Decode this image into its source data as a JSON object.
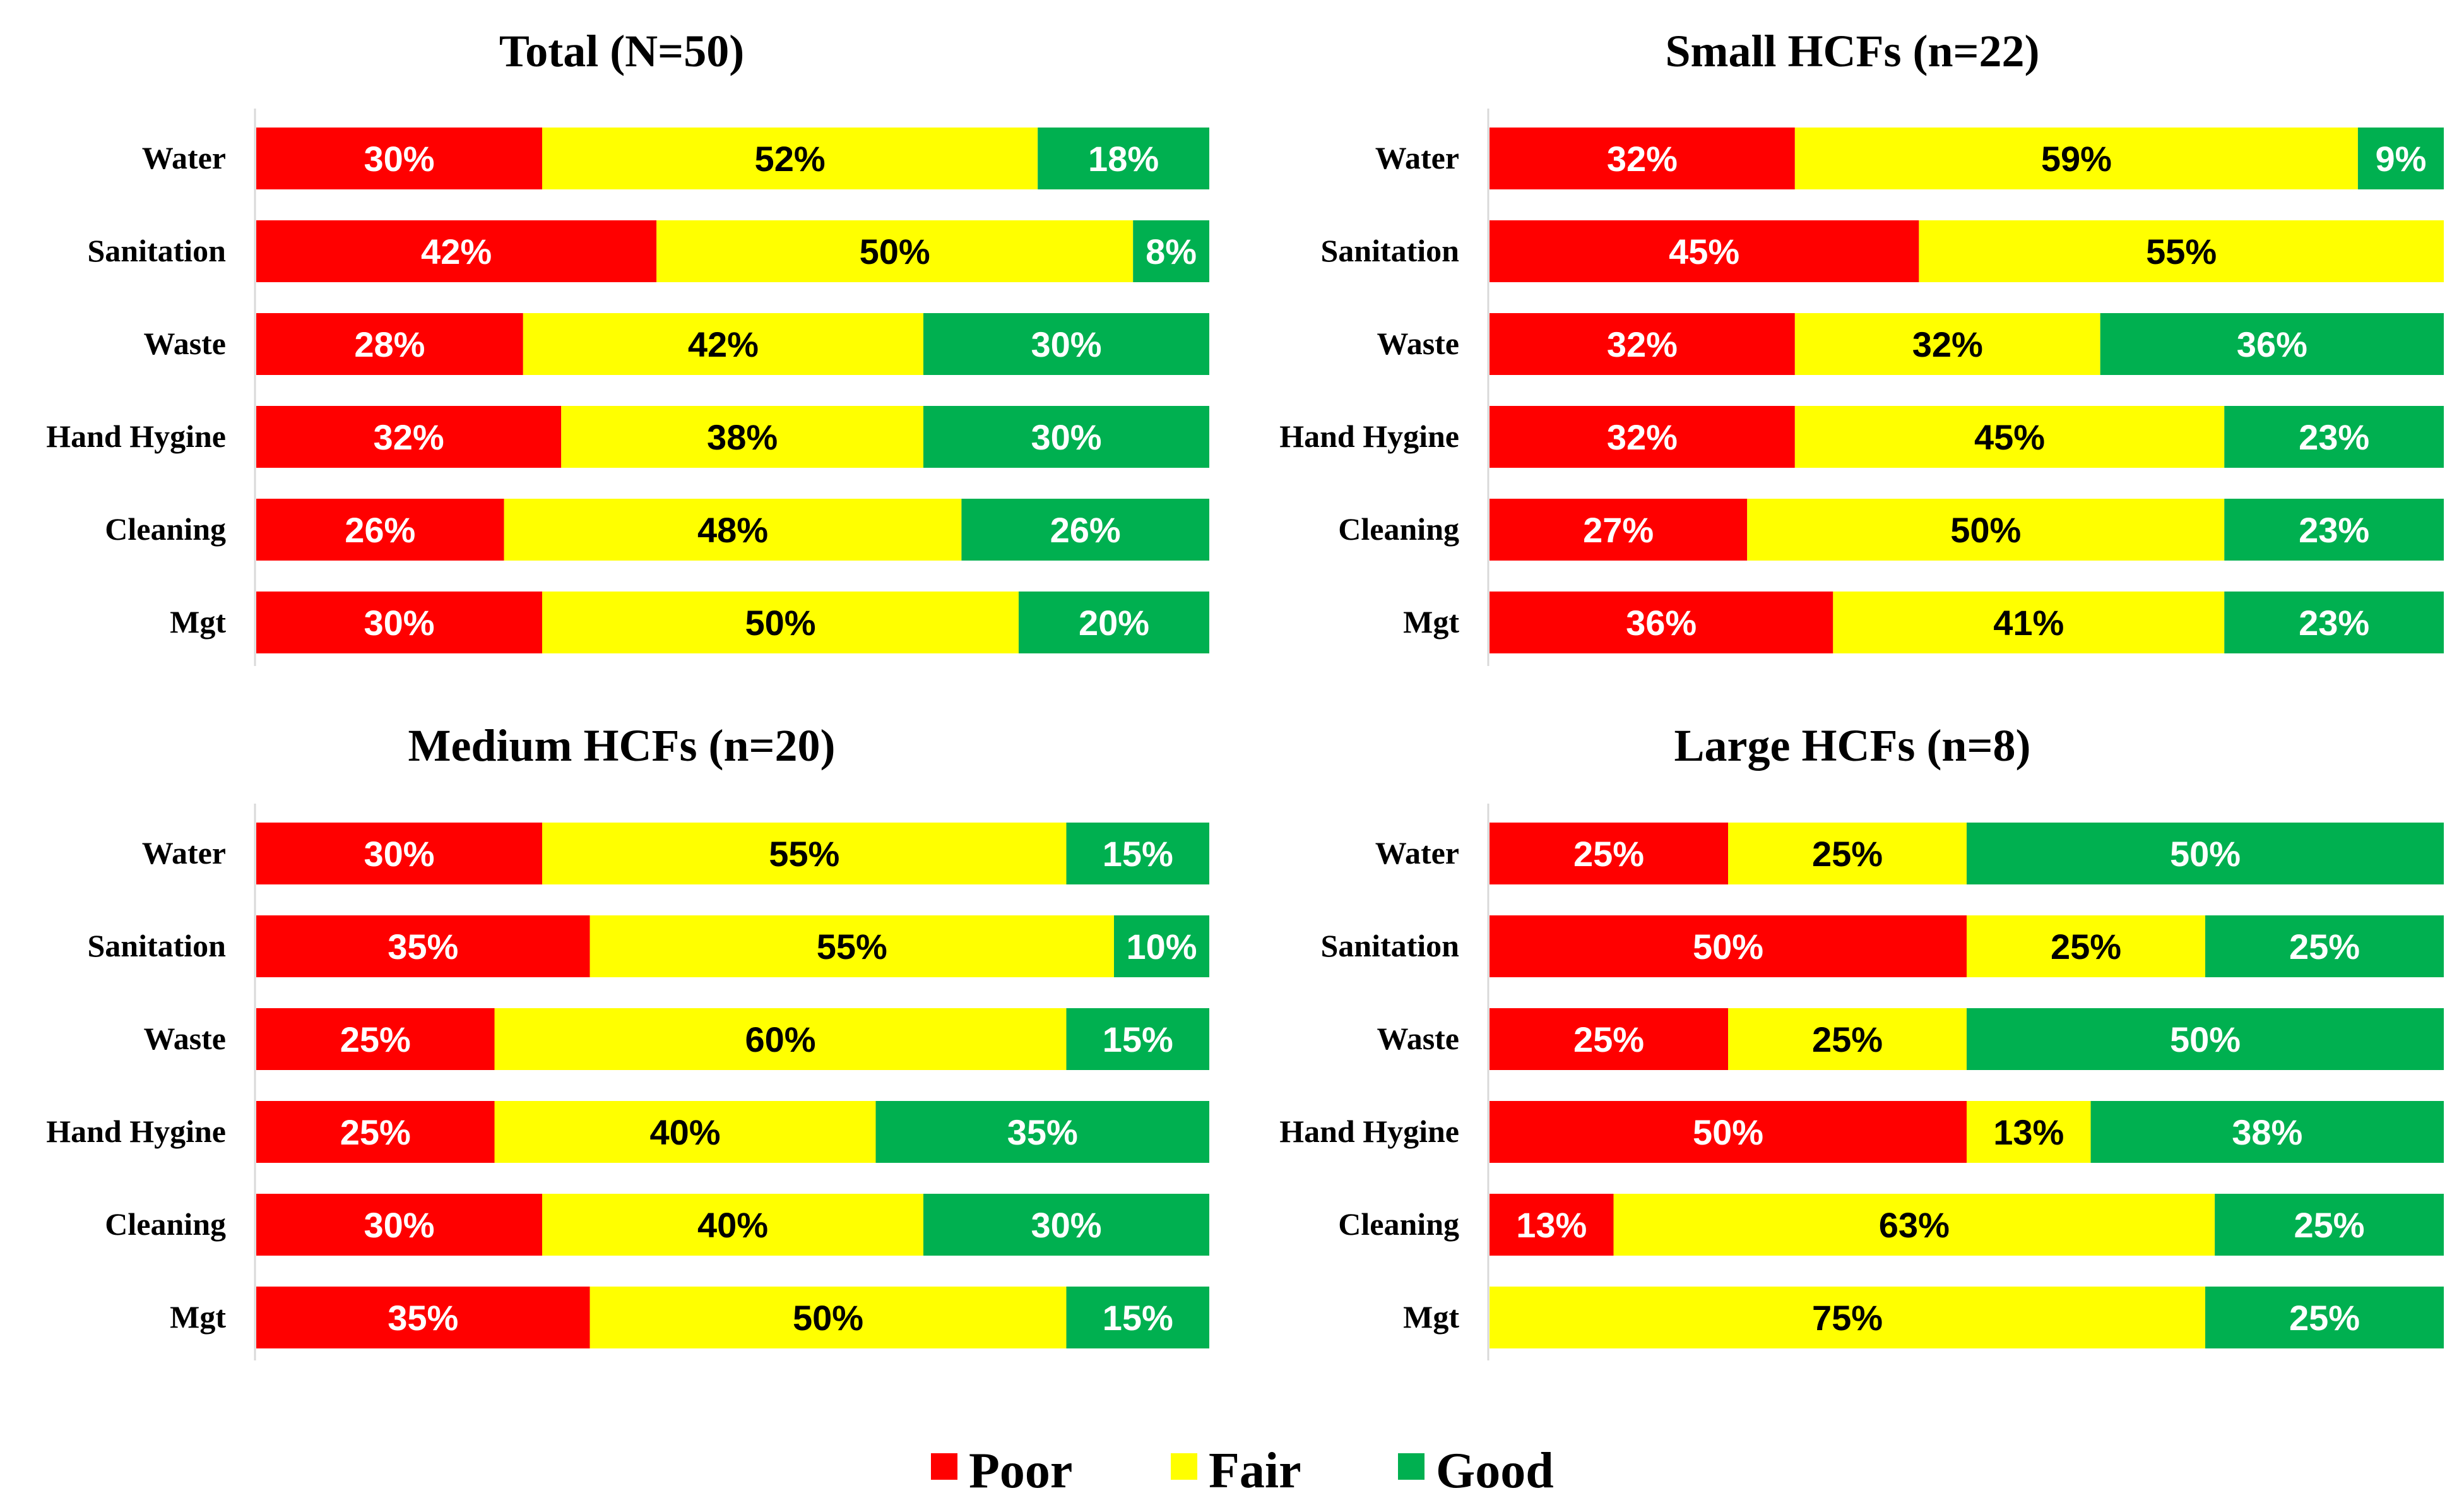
{
  "legend": [
    {
      "name": "Poor",
      "color": "#FF0000"
    },
    {
      "name": "Fair",
      "color": "#FFFF00"
    },
    {
      "name": "Good",
      "color": "#00B050"
    }
  ],
  "chart_data": [
    {
      "type": "bar",
      "orientation": "horizontal-stacked-100",
      "title": "Total (N=50)",
      "categories": [
        "Water",
        "Sanitation",
        "Waste",
        "Hand Hygine",
        "Cleaning",
        "Mgt"
      ],
      "series": [
        {
          "name": "Poor",
          "values": [
            30,
            42,
            28,
            32,
            26,
            30
          ]
        },
        {
          "name": "Fair",
          "values": [
            52,
            50,
            42,
            38,
            48,
            50
          ]
        },
        {
          "name": "Good",
          "values": [
            18,
            8,
            30,
            30,
            26,
            20
          ]
        }
      ],
      "xlabel": "",
      "ylabel": "",
      "xlim": [
        0,
        100
      ]
    },
    {
      "type": "bar",
      "orientation": "horizontal-stacked-100",
      "title": "Small HCFs (n=22)",
      "categories": [
        "Water",
        "Sanitation",
        "Waste",
        "Hand Hygine",
        "Cleaning",
        "Mgt"
      ],
      "series": [
        {
          "name": "Poor",
          "values": [
            32,
            45,
            32,
            32,
            27,
            36
          ]
        },
        {
          "name": "Fair",
          "values": [
            59,
            55,
            32,
            45,
            50,
            41
          ]
        },
        {
          "name": "Good",
          "values": [
            9,
            0,
            36,
            23,
            23,
            23
          ]
        }
      ],
      "xlabel": "",
      "ylabel": "",
      "xlim": [
        0,
        100
      ]
    },
    {
      "type": "bar",
      "orientation": "horizontal-stacked-100",
      "title": "Medium HCFs (n=20)",
      "categories": [
        "Water",
        "Sanitation",
        "Waste",
        "Hand Hygine",
        "Cleaning",
        "Mgt"
      ],
      "series": [
        {
          "name": "Poor",
          "values": [
            30,
            35,
            25,
            25,
            30,
            35
          ]
        },
        {
          "name": "Fair",
          "values": [
            55,
            55,
            60,
            40,
            40,
            50
          ]
        },
        {
          "name": "Good",
          "values": [
            15,
            10,
            15,
            35,
            30,
            15
          ]
        }
      ],
      "xlabel": "",
      "ylabel": "",
      "xlim": [
        0,
        100
      ]
    },
    {
      "type": "bar",
      "orientation": "horizontal-stacked-100",
      "title": "Large HCFs (n=8)",
      "categories": [
        "Water",
        "Sanitation",
        "Waste",
        "Hand Hygine",
        "Cleaning",
        "Mgt"
      ],
      "series": [
        {
          "name": "Poor",
          "values": [
            25,
            50,
            25,
            50,
            13,
            0
          ]
        },
        {
          "name": "Fair",
          "values": [
            25,
            25,
            25,
            13,
            63,
            75
          ]
        },
        {
          "name": "Good",
          "values": [
            50,
            25,
            50,
            38,
            25,
            25
          ]
        }
      ],
      "xlabel": "",
      "ylabel": "",
      "xlim": [
        0,
        100
      ]
    }
  ]
}
